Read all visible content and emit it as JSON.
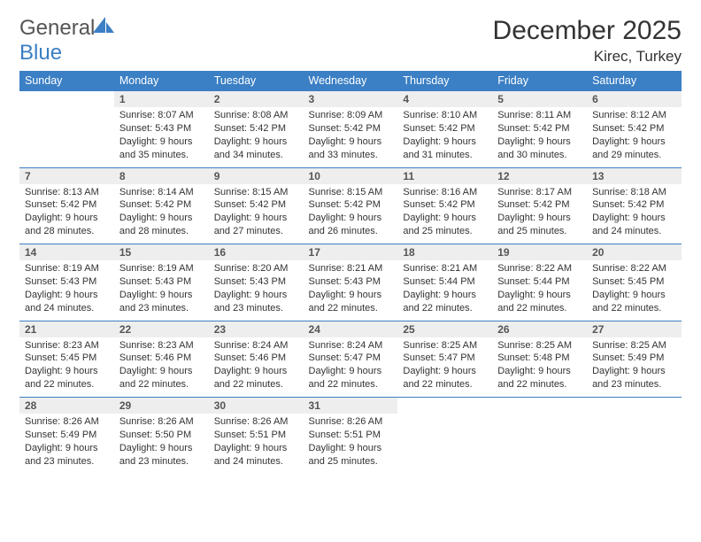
{
  "logo": {
    "general": "General",
    "blue": "Blue"
  },
  "title": "December 2025",
  "location": "Kirec, Turkey",
  "colors": {
    "header_bg": "#3b7fc4",
    "header_text": "#ffffff",
    "daynum_bg": "#eeeeee",
    "row_divider": "#3b7fc4",
    "body_bg": "#ffffff",
    "text": "#333333"
  },
  "days_of_week": [
    "Sunday",
    "Monday",
    "Tuesday",
    "Wednesday",
    "Thursday",
    "Friday",
    "Saturday"
  ],
  "weeks": [
    {
      "nums": [
        "",
        "1",
        "2",
        "3",
        "4",
        "5",
        "6"
      ],
      "cells": [
        "",
        "Sunrise: 8:07 AM\nSunset: 5:43 PM\nDaylight: 9 hours and 35 minutes.",
        "Sunrise: 8:08 AM\nSunset: 5:42 PM\nDaylight: 9 hours and 34 minutes.",
        "Sunrise: 8:09 AM\nSunset: 5:42 PM\nDaylight: 9 hours and 33 minutes.",
        "Sunrise: 8:10 AM\nSunset: 5:42 PM\nDaylight: 9 hours and 31 minutes.",
        "Sunrise: 8:11 AM\nSunset: 5:42 PM\nDaylight: 9 hours and 30 minutes.",
        "Sunrise: 8:12 AM\nSunset: 5:42 PM\nDaylight: 9 hours and 29 minutes."
      ]
    },
    {
      "nums": [
        "7",
        "8",
        "9",
        "10",
        "11",
        "12",
        "13"
      ],
      "cells": [
        "Sunrise: 8:13 AM\nSunset: 5:42 PM\nDaylight: 9 hours and 28 minutes.",
        "Sunrise: 8:14 AM\nSunset: 5:42 PM\nDaylight: 9 hours and 28 minutes.",
        "Sunrise: 8:15 AM\nSunset: 5:42 PM\nDaylight: 9 hours and 27 minutes.",
        "Sunrise: 8:15 AM\nSunset: 5:42 PM\nDaylight: 9 hours and 26 minutes.",
        "Sunrise: 8:16 AM\nSunset: 5:42 PM\nDaylight: 9 hours and 25 minutes.",
        "Sunrise: 8:17 AM\nSunset: 5:42 PM\nDaylight: 9 hours and 25 minutes.",
        "Sunrise: 8:18 AM\nSunset: 5:42 PM\nDaylight: 9 hours and 24 minutes."
      ]
    },
    {
      "nums": [
        "14",
        "15",
        "16",
        "17",
        "18",
        "19",
        "20"
      ],
      "cells": [
        "Sunrise: 8:19 AM\nSunset: 5:43 PM\nDaylight: 9 hours and 24 minutes.",
        "Sunrise: 8:19 AM\nSunset: 5:43 PM\nDaylight: 9 hours and 23 minutes.",
        "Sunrise: 8:20 AM\nSunset: 5:43 PM\nDaylight: 9 hours and 23 minutes.",
        "Sunrise: 8:21 AM\nSunset: 5:43 PM\nDaylight: 9 hours and 22 minutes.",
        "Sunrise: 8:21 AM\nSunset: 5:44 PM\nDaylight: 9 hours and 22 minutes.",
        "Sunrise: 8:22 AM\nSunset: 5:44 PM\nDaylight: 9 hours and 22 minutes.",
        "Sunrise: 8:22 AM\nSunset: 5:45 PM\nDaylight: 9 hours and 22 minutes."
      ]
    },
    {
      "nums": [
        "21",
        "22",
        "23",
        "24",
        "25",
        "26",
        "27"
      ],
      "cells": [
        "Sunrise: 8:23 AM\nSunset: 5:45 PM\nDaylight: 9 hours and 22 minutes.",
        "Sunrise: 8:23 AM\nSunset: 5:46 PM\nDaylight: 9 hours and 22 minutes.",
        "Sunrise: 8:24 AM\nSunset: 5:46 PM\nDaylight: 9 hours and 22 minutes.",
        "Sunrise: 8:24 AM\nSunset: 5:47 PM\nDaylight: 9 hours and 22 minutes.",
        "Sunrise: 8:25 AM\nSunset: 5:47 PM\nDaylight: 9 hours and 22 minutes.",
        "Sunrise: 8:25 AM\nSunset: 5:48 PM\nDaylight: 9 hours and 22 minutes.",
        "Sunrise: 8:25 AM\nSunset: 5:49 PM\nDaylight: 9 hours and 23 minutes."
      ]
    },
    {
      "nums": [
        "28",
        "29",
        "30",
        "31",
        "",
        "",
        ""
      ],
      "cells": [
        "Sunrise: 8:26 AM\nSunset: 5:49 PM\nDaylight: 9 hours and 23 minutes.",
        "Sunrise: 8:26 AM\nSunset: 5:50 PM\nDaylight: 9 hours and 23 minutes.",
        "Sunrise: 8:26 AM\nSunset: 5:51 PM\nDaylight: 9 hours and 24 minutes.",
        "Sunrise: 8:26 AM\nSunset: 5:51 PM\nDaylight: 9 hours and 25 minutes.",
        "",
        "",
        ""
      ]
    }
  ]
}
